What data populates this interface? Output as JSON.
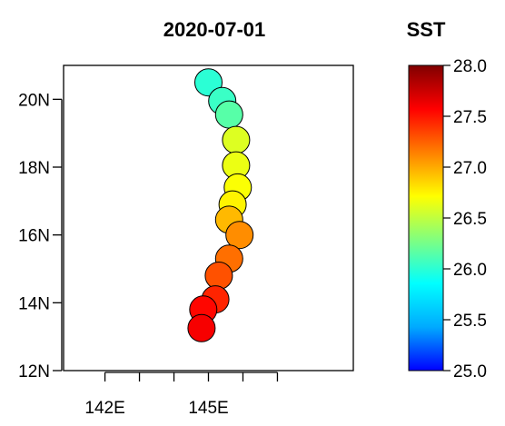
{
  "chart_data": {
    "type": "scatter",
    "title": "2020-07-01",
    "x_ticks": [
      {
        "value": 142,
        "label": "142E"
      },
      {
        "value": 143,
        "label": ""
      },
      {
        "value": 144,
        "label": ""
      },
      {
        "value": 145,
        "label": "145E"
      },
      {
        "value": 146,
        "label": ""
      },
      {
        "value": 147,
        "label": ""
      }
    ],
    "y_ticks": [
      {
        "value": 12,
        "label": "12N"
      },
      {
        "value": 14,
        "label": "14N"
      },
      {
        "value": 16,
        "label": "16N"
      },
      {
        "value": 18,
        "label": "18N"
      },
      {
        "value": 20,
        "label": "20N"
      }
    ],
    "xlim": [
      140.8,
      149.2
    ],
    "ylim": [
      12,
      21
    ],
    "points": [
      {
        "lon": 145.0,
        "lat": 20.5,
        "sst": 26.0
      },
      {
        "lon": 145.4,
        "lat": 19.95,
        "sst": 26.05
      },
      {
        "lon": 145.6,
        "lat": 19.55,
        "sst": 26.15
      },
      {
        "lon": 145.8,
        "lat": 18.8,
        "sst": 26.6
      },
      {
        "lon": 145.8,
        "lat": 18.05,
        "sst": 26.65
      },
      {
        "lon": 145.85,
        "lat": 17.4,
        "sst": 26.7
      },
      {
        "lon": 145.7,
        "lat": 16.9,
        "sst": 26.75
      },
      {
        "lon": 145.6,
        "lat": 16.45,
        "sst": 26.95
      },
      {
        "lon": 145.9,
        "lat": 16.0,
        "sst": 27.1
      },
      {
        "lon": 145.6,
        "lat": 15.3,
        "sst": 27.2
      },
      {
        "lon": 145.3,
        "lat": 14.8,
        "sst": 27.3
      },
      {
        "lon": 145.2,
        "lat": 14.1,
        "sst": 27.45
      },
      {
        "lon": 144.85,
        "lat": 13.8,
        "sst": 27.55
      },
      {
        "lon": 144.8,
        "lat": 13.25,
        "sst": 27.6
      }
    ],
    "colorbar": {
      "title": "SST",
      "min": 25.0,
      "max": 28.0,
      "ticks": [
        {
          "value": 25.0,
          "label": "25.0"
        },
        {
          "value": 25.5,
          "label": "25.5"
        },
        {
          "value": 26.0,
          "label": "26.0"
        },
        {
          "value": 26.5,
          "label": "26.5"
        },
        {
          "value": 27.0,
          "label": "27.0"
        },
        {
          "value": 27.5,
          "label": "27.5"
        },
        {
          "value": 28.0,
          "label": "28.0"
        }
      ],
      "palette": [
        "#0000ff",
        "#00aaff",
        "#00ffff",
        "#80ff80",
        "#ffff00",
        "#ff8000",
        "#ff0000",
        "#800000"
      ]
    }
  }
}
